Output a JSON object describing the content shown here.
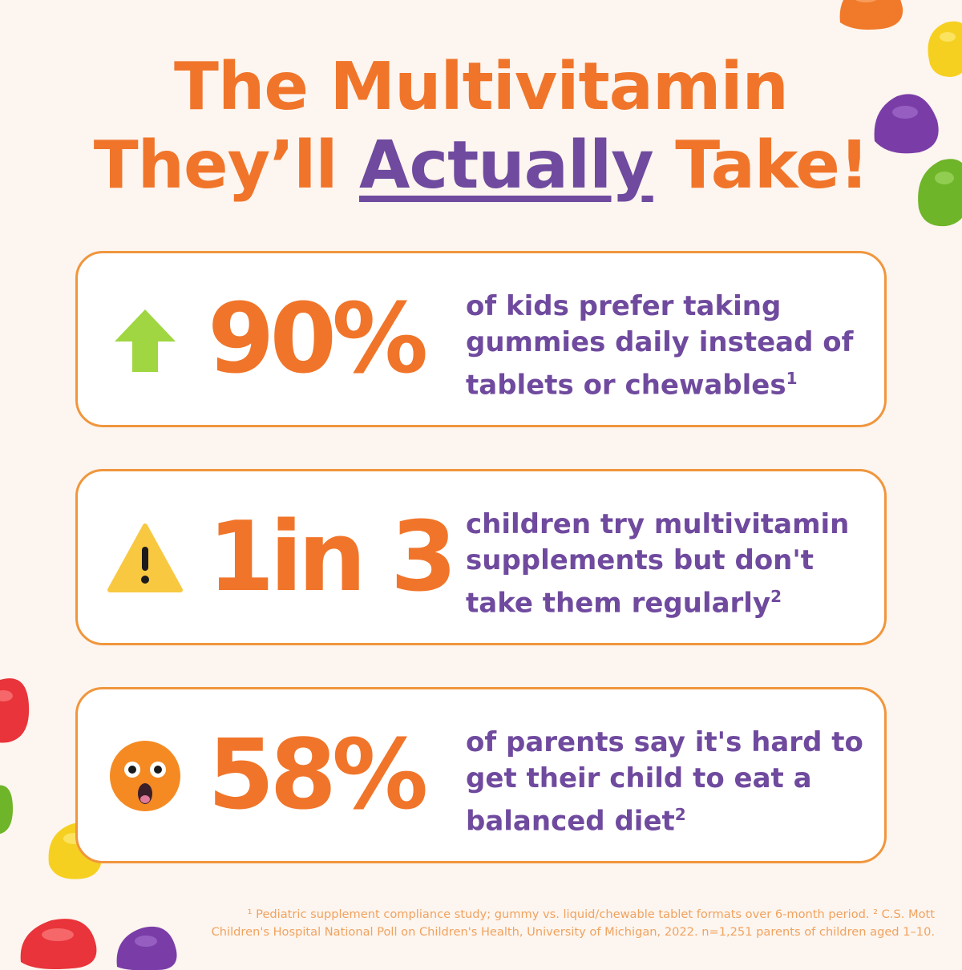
{
  "colors": {
    "background": "#fdf5ef",
    "title_orange": "#f0752a",
    "accent_purple": "#6f4a9e",
    "card_border": "#f0963d",
    "footnote": "#f0a35f"
  },
  "title": {
    "line1": "The Multivitamin",
    "line2_before": "They’ll ",
    "line2_accent": "Actually",
    "line2_after": " Take!"
  },
  "stats": [
    {
      "icon": "up-arrow-icon",
      "value": "90%",
      "text": "of kids prefer taking gummies daily instead of tablets or chewables",
      "ref": "1"
    },
    {
      "icon": "warning-icon",
      "value": "1in 3",
      "text": "children try multivitamin supplements but don't take them regularly",
      "ref": "2"
    },
    {
      "icon": "astonished-face-icon",
      "value": "58%",
      "text": "of parents say it's hard to get their child to eat a balanced diet",
      "ref": "2"
    }
  ],
  "footnote": {
    "line1": "¹ Pediatric supplement compliance study; gummy vs. liquid/chewable tablet formats over 6-month period. ² C.S. Mott",
    "line2": "Children's Hospital National Poll on Children's Health, University of Michigan, 2022. n=1,251 parents of children aged 1–10."
  },
  "decorations": [
    "orange-gummy",
    "yellow-gummy",
    "purple-gummy",
    "green-gummy",
    "red-gummy",
    "green-gummy",
    "yellow-gummy",
    "red-gummy",
    "purple-gummy"
  ]
}
